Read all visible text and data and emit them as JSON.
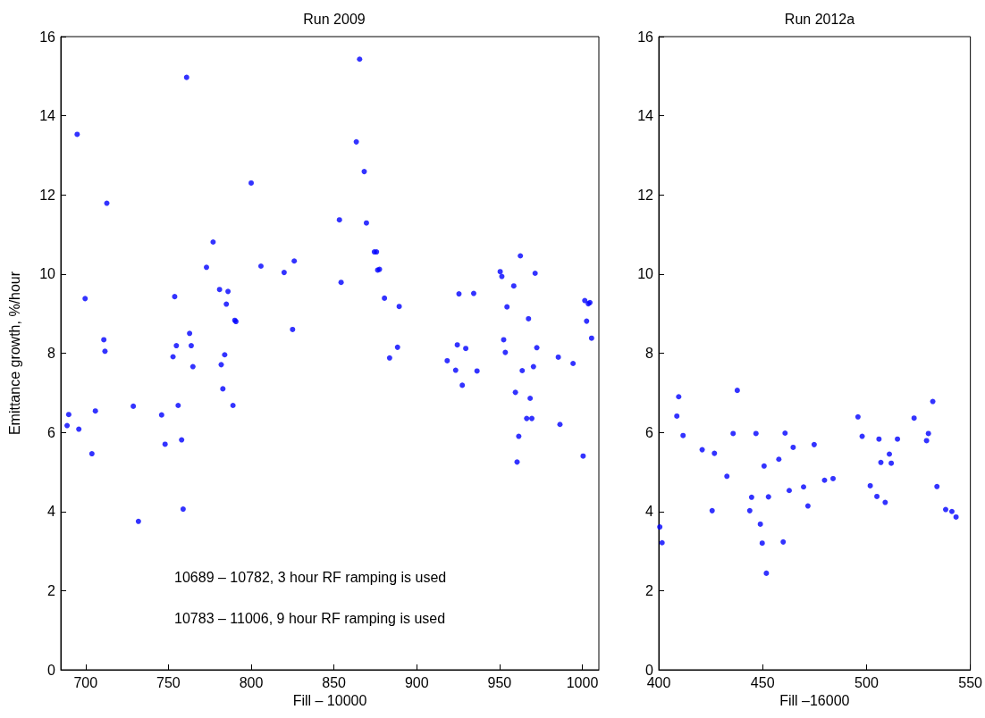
{
  "chart_data": [
    {
      "type": "scatter",
      "title": "Run 2009",
      "xlabel": "Fill – 10000",
      "ylabel": "Emittance growth, %/hour",
      "marker": "circle",
      "xlim": [
        685,
        1010
      ],
      "xticks": [
        700,
        750,
        800,
        850,
        900,
        950,
        1000
      ],
      "ylim": [
        0,
        16
      ],
      "yticks": [
        0,
        2,
        4,
        6,
        8,
        10,
        12,
        14,
        16
      ],
      "annotations": [
        "10689 – 10782, 3 hour RF ramping is used",
        "10783 – 11006, 9 hour RF ramping is used"
      ],
      "series": [
        {
          "color": "#0000ff",
          "x": [
            688.8,
            689.8,
            695.9,
            694.9,
            699.7,
            705.9,
            703.8,
            711.0,
            711.7,
            712.8,
            728.8,
            731.9,
            745.9,
            748.0,
            753.8,
            752.8,
            754.8,
            755.9,
            758.0,
            758.9,
            761.0,
            762.8,
            763.8,
            764.8,
            773.0,
            777.0,
            780.9,
            786.0,
            785.0,
            781.9,
            784.0,
            782.9,
            790.1,
            790.8,
            789.0,
            800.0,
            805.9,
            819.9,
            826.0,
            825.0,
            865.5,
            863.5,
            868.3,
            853.3,
            869.6,
            874.4,
            875.7,
            876.4,
            877.5,
            854.3,
            880.5,
            889.4,
            888.4,
            883.6,
            918.4,
            923.5,
            924.5,
            929.6,
            927.5,
            925.5,
            934.4,
            936.4,
            950.4,
            951.4,
            958.6,
            954.5,
            962.6,
            971.5,
            952.5,
            953.5,
            967.5,
            972.5,
            970.5,
            963.7,
            959.6,
            968.5,
            966.4,
            969.5,
            961.6,
            960.6,
            985.5,
            994.4,
            986.5,
            1001.5,
            1003.6,
            1004.6,
            1002.6,
            1005.6,
            1000.5
          ],
          "values": [
            6.17,
            6.45,
            6.08,
            13.53,
            9.38,
            6.54,
            5.46,
            8.34,
            8.05,
            11.79,
            6.66,
            3.75,
            6.44,
            5.7,
            9.43,
            7.91,
            8.19,
            6.68,
            5.81,
            4.06,
            14.97,
            8.5,
            8.19,
            7.66,
            10.17,
            10.81,
            9.61,
            9.56,
            9.24,
            7.71,
            7.96,
            7.1,
            8.83,
            8.8,
            6.68,
            12.3,
            10.2,
            10.04,
            10.33,
            8.6,
            15.43,
            13.34,
            12.59,
            11.37,
            11.29,
            10.56,
            10.56,
            10.1,
            10.12,
            9.79,
            9.39,
            9.18,
            8.15,
            7.88,
            7.81,
            7.57,
            8.21,
            8.12,
            7.19,
            9.5,
            9.51,
            7.55,
            10.06,
            9.94,
            9.7,
            9.17,
            10.46,
            10.02,
            8.34,
            8.02,
            8.87,
            8.14,
            7.66,
            7.56,
            7.01,
            6.86,
            6.35,
            6.35,
            5.9,
            5.25,
            7.9,
            7.74,
            6.2,
            9.33,
            9.25,
            9.28,
            8.81,
            8.38,
            5.4
          ]
        }
      ]
    },
    {
      "type": "scatter",
      "title": "Run 2012a",
      "xlabel": "Fill –16000",
      "marker": "circle",
      "xlim": [
        400,
        550
      ],
      "xticks": [
        400,
        450,
        500,
        550
      ],
      "ylim": [
        0,
        16
      ],
      "yticks": [
        0,
        2,
        4,
        6,
        8,
        10,
        12,
        14,
        16
      ],
      "series": [
        {
          "color": "#0000ff",
          "x": [
            400.5,
            401.6,
            408.7,
            409.6,
            411.7,
            420.9,
            425.7,
            426.8,
            432.8,
            435.8,
            437.8,
            443.8,
            444.7,
            446.8,
            448.9,
            449.8,
            450.7,
            451.8,
            452.8,
            457.8,
            459.9,
            460.8,
            462.8,
            464.7,
            469.7,
            471.8,
            474.8,
            479.8,
            483.9,
            495.9,
            497.9,
            501.8,
            505.0,
            506.0,
            506.9,
            509.0,
            511.0,
            511.9,
            514.9,
            522.9,
            528.9,
            529.8,
            531.9,
            533.9,
            538.1,
            541.1,
            543.1
          ],
          "values": [
            3.61,
            3.21,
            6.41,
            6.9,
            5.92,
            5.56,
            4.02,
            5.47,
            4.89,
            5.97,
            7.06,
            4.02,
            4.36,
            5.97,
            3.68,
            3.2,
            5.15,
            2.44,
            4.37,
            5.32,
            3.23,
            5.98,
            4.53,
            5.62,
            4.62,
            4.14,
            5.69,
            4.79,
            4.83,
            6.39,
            5.9,
            4.65,
            4.38,
            5.83,
            5.24,
            4.23,
            5.45,
            5.22,
            5.83,
            6.36,
            5.79,
            5.97,
            6.78,
            4.63,
            4.05,
            4.0,
            3.86
          ]
        }
      ]
    }
  ]
}
